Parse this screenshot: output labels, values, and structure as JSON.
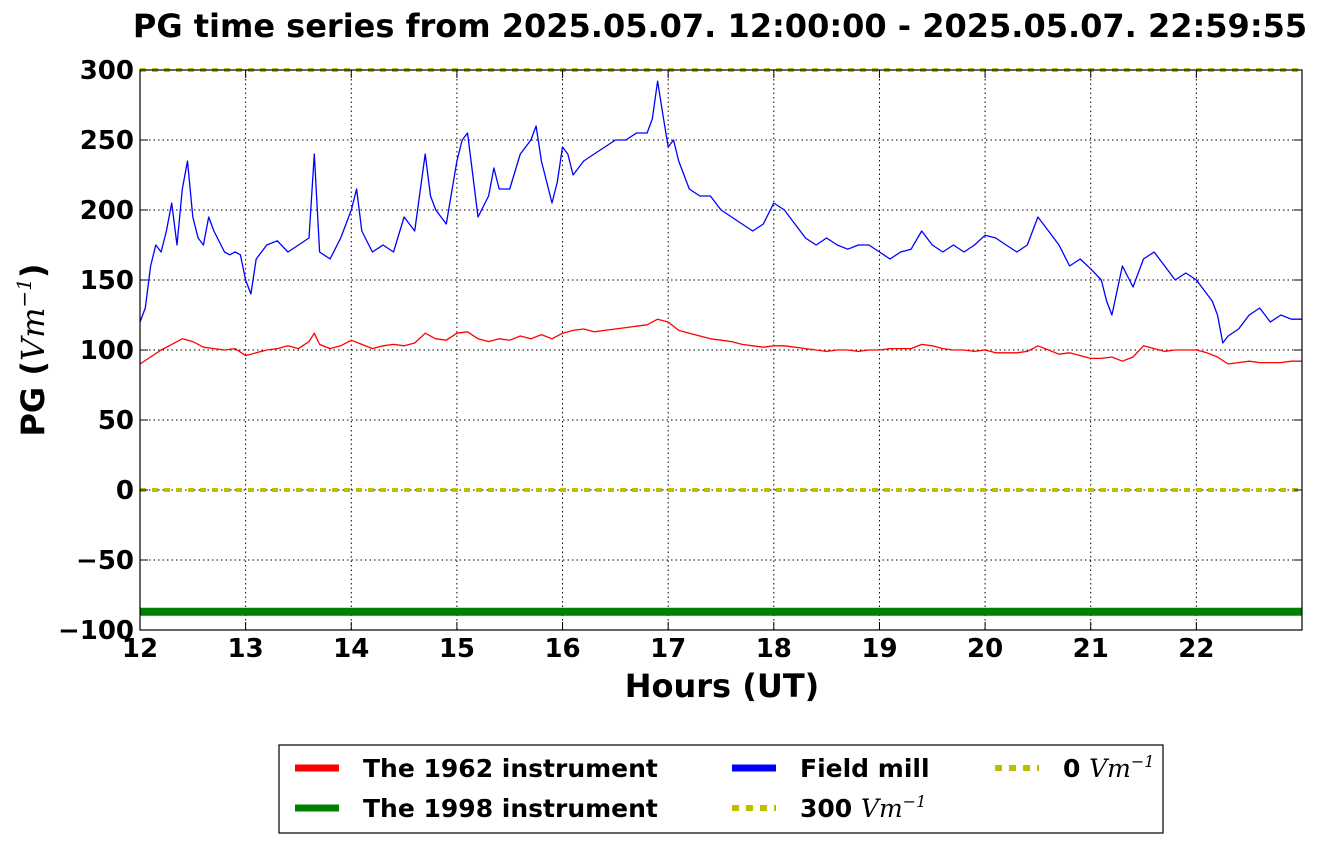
{
  "chart_data": {
    "type": "line",
    "title": "PG time series from 2025.05.07. 12:00:00 - 2025.05.07. 22:59:55",
    "xlabel": "Hours (UT)",
    "ylabel": {
      "prefix": "PG (",
      "math": "Vm",
      "sup": "−1",
      "suffix": ")"
    },
    "xlim": [
      12,
      23
    ],
    "ylim": [
      -100,
      300
    ],
    "xticks": [
      12,
      13,
      14,
      15,
      16,
      17,
      18,
      19,
      20,
      21,
      22
    ],
    "xtick_labels": [
      "12",
      "13",
      "14",
      "15",
      "16",
      "17",
      "18",
      "19",
      "20",
      "21",
      "22"
    ],
    "yticks": [
      -100,
      -50,
      0,
      50,
      100,
      150,
      200,
      250,
      300
    ],
    "ytick_labels": [
      "−100",
      "−50",
      "0",
      "50",
      "100",
      "150",
      "200",
      "250",
      "300"
    ],
    "grid": true,
    "legend_placement": "below plot",
    "series": [
      {
        "name": "The 1962 instrument",
        "color": "#ff0000",
        "style": "solid",
        "x": [
          12.0,
          12.1,
          12.2,
          12.3,
          12.4,
          12.5,
          12.6,
          12.7,
          12.8,
          12.9,
          13.0,
          13.1,
          13.2,
          13.3,
          13.4,
          13.5,
          13.6,
          13.65,
          13.7,
          13.8,
          13.9,
          14.0,
          14.1,
          14.2,
          14.3,
          14.4,
          14.5,
          14.6,
          14.7,
          14.8,
          14.9,
          15.0,
          15.1,
          15.2,
          15.3,
          15.4,
          15.5,
          15.6,
          15.7,
          15.8,
          15.9,
          16.0,
          16.1,
          16.2,
          16.3,
          16.4,
          16.5,
          16.6,
          16.7,
          16.8,
          16.9,
          17.0,
          17.1,
          17.2,
          17.3,
          17.4,
          17.5,
          17.6,
          17.7,
          17.8,
          17.9,
          18.0,
          18.1,
          18.2,
          18.3,
          18.4,
          18.5,
          18.6,
          18.7,
          18.8,
          18.9,
          19.0,
          19.1,
          19.2,
          19.3,
          19.4,
          19.5,
          19.6,
          19.7,
          19.8,
          19.9,
          20.0,
          20.1,
          20.2,
          20.3,
          20.4,
          20.5,
          20.6,
          20.7,
          20.8,
          20.9,
          21.0,
          21.1,
          21.2,
          21.3,
          21.4,
          21.5,
          21.6,
          21.7,
          21.8,
          21.9,
          22.0,
          22.1,
          22.2,
          22.3,
          22.4,
          22.5,
          22.6,
          22.7,
          22.8,
          22.9,
          23.0
        ],
        "y": [
          90,
          95,
          100,
          104,
          108,
          106,
          102,
          101,
          100,
          101,
          96,
          98,
          100,
          101,
          103,
          101,
          106,
          112,
          104,
          101,
          103,
          107,
          104,
          101,
          103,
          104,
          103,
          105,
          112,
          108,
          107,
          112,
          113,
          108,
          106,
          108,
          107,
          110,
          108,
          111,
          108,
          112,
          114,
          115,
          113,
          114,
          115,
          116,
          117,
          118,
          122,
          120,
          114,
          112,
          110,
          108,
          107,
          106,
          104,
          103,
          102,
          103,
          103,
          102,
          101,
          100,
          99,
          100,
          100,
          99,
          100,
          100,
          101,
          101,
          101,
          104,
          103,
          101,
          100,
          100,
          99,
          100,
          98,
          98,
          98,
          99,
          103,
          100,
          97,
          98,
          96,
          94,
          94,
          95,
          92,
          95,
          103,
          101,
          99,
          100,
          100,
          100,
          98,
          95,
          90,
          91,
          92,
          91,
          91,
          91,
          92,
          92
        ]
      },
      {
        "name": "The 1998 instrument",
        "color": "#008000",
        "style": "solid",
        "x": [
          12.0,
          23.0
        ],
        "y": [
          -87,
          -87
        ]
      },
      {
        "name": "Field mill",
        "color": "#0000ff",
        "style": "solid",
        "x": [
          12.0,
          12.05,
          12.1,
          12.15,
          12.2,
          12.25,
          12.3,
          12.35,
          12.4,
          12.45,
          12.5,
          12.55,
          12.6,
          12.65,
          12.7,
          12.8,
          12.85,
          12.9,
          12.95,
          13.0,
          13.05,
          13.1,
          13.2,
          13.3,
          13.4,
          13.5,
          13.6,
          13.65,
          13.7,
          13.8,
          13.9,
          14.0,
          14.05,
          14.1,
          14.2,
          14.3,
          14.4,
          14.5,
          14.6,
          14.7,
          14.75,
          14.8,
          14.9,
          15.0,
          15.05,
          15.1,
          15.15,
          15.2,
          15.3,
          15.35,
          15.4,
          15.5,
          15.6,
          15.7,
          15.75,
          15.8,
          15.9,
          15.95,
          16.0,
          16.05,
          16.1,
          16.2,
          16.3,
          16.4,
          16.5,
          16.6,
          16.7,
          16.8,
          16.85,
          16.9,
          16.95,
          17.0,
          17.05,
          17.1,
          17.2,
          17.3,
          17.4,
          17.5,
          17.6,
          17.7,
          17.8,
          17.9,
          18.0,
          18.1,
          18.2,
          18.3,
          18.4,
          18.5,
          18.6,
          18.7,
          18.8,
          18.9,
          19.0,
          19.1,
          19.2,
          19.3,
          19.4,
          19.5,
          19.6,
          19.7,
          19.8,
          19.9,
          20.0,
          20.1,
          20.2,
          20.3,
          20.4,
          20.5,
          20.6,
          20.7,
          20.8,
          20.9,
          21.0,
          21.1,
          21.15,
          21.2,
          21.3,
          21.4,
          21.5,
          21.6,
          21.7,
          21.8,
          21.9,
          22.0,
          22.1,
          22.15,
          22.2,
          22.25,
          22.3,
          22.4,
          22.5,
          22.6,
          22.7,
          22.8,
          22.9,
          23.0
        ],
        "y": [
          120,
          130,
          160,
          175,
          170,
          185,
          205,
          175,
          215,
          235,
          195,
          180,
          175,
          195,
          185,
          170,
          168,
          170,
          168,
          150,
          140,
          165,
          175,
          178,
          170,
          175,
          180,
          240,
          170,
          165,
          180,
          200,
          215,
          185,
          170,
          175,
          170,
          195,
          185,
          240,
          210,
          200,
          190,
          235,
          250,
          255,
          225,
          195,
          210,
          230,
          215,
          215,
          240,
          250,
          260,
          235,
          205,
          220,
          245,
          240,
          225,
          235,
          240,
          245,
          250,
          250,
          255,
          255,
          265,
          292,
          268,
          245,
          250,
          235,
          215,
          210,
          210,
          200,
          195,
          190,
          185,
          190,
          205,
          200,
          190,
          180,
          175,
          180,
          175,
          172,
          175,
          175,
          170,
          165,
          170,
          172,
          185,
          175,
          170,
          175,
          170,
          175,
          182,
          180,
          175,
          170,
          175,
          195,
          185,
          175,
          160,
          165,
          158,
          150,
          135,
          125,
          160,
          145,
          165,
          170,
          160,
          150,
          155,
          150,
          140,
          135,
          125,
          105,
          110,
          115,
          125,
          130,
          120,
          125,
          122,
          122
        ]
      },
      {
        "name": "300 Vm⁻¹",
        "label": {
          "num": "300",
          "math": "Vm",
          "sup": "−1"
        },
        "color": "#bfbf00",
        "style": "dotted",
        "x": [
          12.0,
          23.0
        ],
        "y": [
          300,
          300
        ]
      },
      {
        "name": "0 Vm⁻¹",
        "label": {
          "num": "0",
          "math": "Vm",
          "sup": "−1"
        },
        "color": "#bfbf00",
        "style": "dotted",
        "x": [
          12.0,
          23.0
        ],
        "y": [
          0,
          0
        ]
      }
    ]
  }
}
